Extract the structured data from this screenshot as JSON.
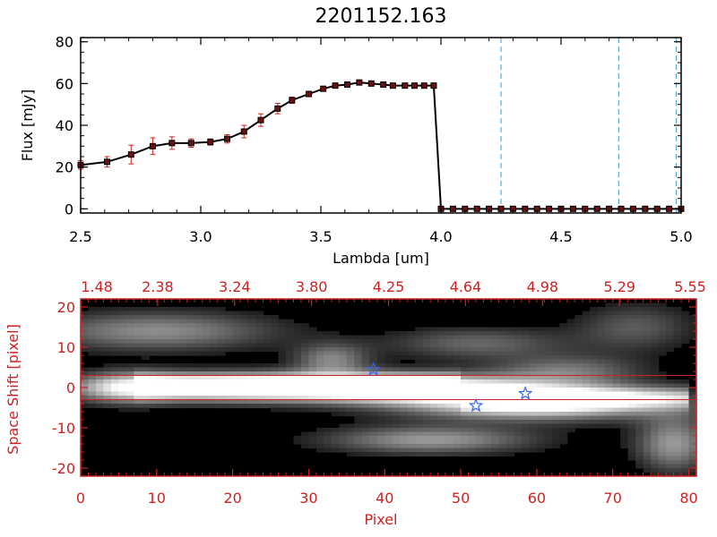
{
  "colors": {
    "ink": "#000000",
    "red": "#cc2222",
    "dash": "#3399dd",
    "star": "#3366ee",
    "spec": "#000000"
  },
  "chart_data": [
    {
      "type": "line",
      "title": "2201152.163",
      "xlabel": "Lambda [um]",
      "ylabel": "Flux [mJy]",
      "xlim": [
        2.5,
        5.0
      ],
      "ylim": [
        -2,
        82
      ],
      "xticks": [
        "2.5",
        "3.0",
        "3.5",
        "4.0",
        "4.5",
        "5.0"
      ],
      "xtick_values": [
        2.5,
        3.0,
        3.5,
        4.0,
        4.5,
        5.0
      ],
      "yticks": [
        "0",
        "20",
        "40",
        "60",
        "80"
      ],
      "ytick_values": [
        0,
        20,
        40,
        60,
        80
      ],
      "series": [
        {
          "name": "flux",
          "x": [
            2.5,
            2.61,
            2.71,
            2.8,
            2.88,
            2.96,
            3.04,
            3.11,
            3.18,
            3.25,
            3.32,
            3.38,
            3.45,
            3.51,
            3.56,
            3.61,
            3.66,
            3.71,
            3.76,
            3.8,
            3.85,
            3.89,
            3.93,
            3.97,
            4.0,
            4.05,
            4.1,
            4.15,
            4.2,
            4.25,
            4.3,
            4.35,
            4.4,
            4.45,
            4.5,
            4.55,
            4.6,
            4.65,
            4.7,
            4.75,
            4.8,
            4.85,
            4.9,
            4.95,
            5.0
          ],
          "y": [
            21,
            22.5,
            26,
            30,
            31.5,
            31.5,
            32,
            33.5,
            37,
            42.5,
            48,
            52,
            55,
            57.5,
            59,
            59.5,
            60.5,
            60,
            59.5,
            59,
            59,
            59,
            59,
            59,
            0,
            0,
            0,
            0,
            0,
            0,
            0,
            0,
            0,
            0,
            0,
            0,
            0,
            0,
            0,
            0,
            0,
            0,
            0,
            0,
            0
          ],
          "err": [
            2,
            2.5,
            4.5,
            4,
            3,
            2,
            1.5,
            2,
            3,
            3,
            2.5,
            1.5,
            1,
            1,
            1,
            0.5,
            0.5,
            0.5,
            0.5,
            0.5,
            0.5,
            0.5,
            0.5,
            0.5,
            0,
            0,
            0,
            0,
            0,
            0,
            0,
            0,
            0,
            0,
            0,
            0,
            0,
            0,
            0,
            0,
            0,
            0,
            0,
            0,
            0
          ]
        }
      ],
      "vlines": [
        4.25,
        4.74,
        4.98
      ]
    },
    {
      "type": "heatmap",
      "xlabel": "Pixel",
      "ylabel": "Space Shift [pixel]",
      "xlim": [
        0,
        81
      ],
      "ylim": [
        -22,
        22
      ],
      "xticks": [
        "0",
        "10",
        "20",
        "30",
        "40",
        "50",
        "60",
        "70",
        "80"
      ],
      "xtick_values": [
        0,
        10,
        20,
        30,
        40,
        50,
        60,
        70,
        80
      ],
      "yticks": [
        "-20",
        "-10",
        "0",
        "10",
        "20"
      ],
      "ytick_values": [
        -20,
        -10,
        0,
        10,
        20
      ],
      "top_ticks": [
        "1.48",
        "2.38",
        "3.24",
        "3.80",
        "4.25",
        "4.64",
        "4.98",
        "5.29",
        "5.55"
      ],
      "hlines": [
        3,
        -3
      ],
      "stars": [
        {
          "x": 38.5,
          "y": 4.5
        },
        {
          "x": 52,
          "y": -4.5
        },
        {
          "x": 58.5,
          "y": -1.5
        }
      ],
      "blobs": [
        {
          "x": 10,
          "y": 14,
          "w": 16,
          "h": 5,
          "v": 0.55
        },
        {
          "x": 33,
          "y": 7,
          "w": 5,
          "h": 4,
          "v": 0.5
        },
        {
          "x": 52,
          "y": 11,
          "w": 12,
          "h": 4,
          "v": 0.4
        },
        {
          "x": 73,
          "y": 15,
          "w": 8,
          "h": 6,
          "v": 0.35
        },
        {
          "x": 20,
          "y": 0,
          "w": 20,
          "h": 3.5,
          "v": 0.95
        },
        {
          "x": 44,
          "y": 0,
          "w": 16,
          "h": 3.5,
          "v": 0.9
        },
        {
          "x": 60,
          "y": -4,
          "w": 18,
          "h": 4,
          "v": 1.0
        },
        {
          "x": 6,
          "y": 0,
          "w": 6,
          "h": 4,
          "v": 0.5
        },
        {
          "x": 46,
          "y": -13,
          "w": 14,
          "h": 3.5,
          "v": 0.6
        },
        {
          "x": 78,
          "y": -14,
          "w": 5,
          "h": 7,
          "v": 0.6
        },
        {
          "x": 64,
          "y": 4,
          "w": 10,
          "h": 4,
          "v": 0.45
        }
      ]
    }
  ]
}
